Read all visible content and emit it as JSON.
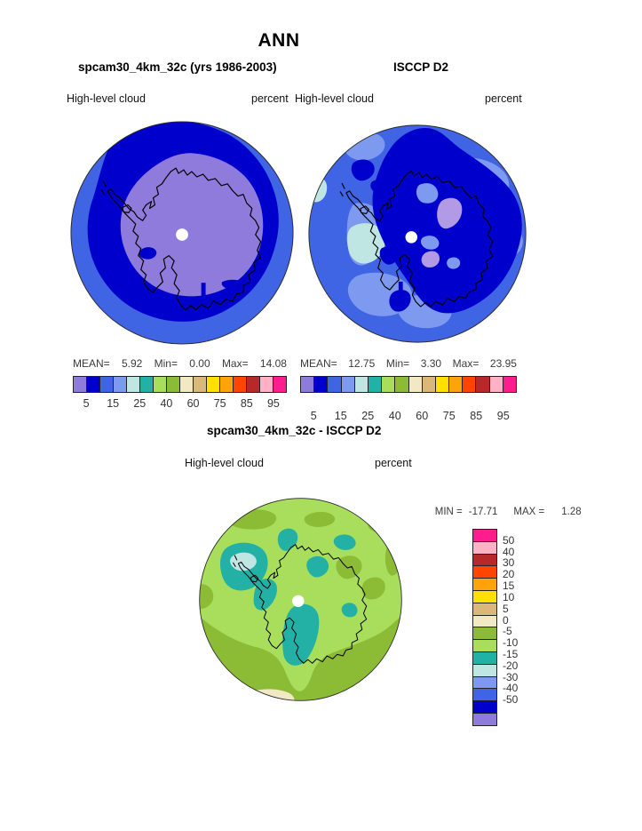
{
  "title": "ANN",
  "panels": {
    "model": {
      "title": "spcam30_4km_32c (yrs 1986-2003)",
      "variable": "High-level cloud",
      "units": "percent",
      "stats": {
        "mean_label": "MEAN=",
        "mean": "5.92",
        "min_label": "Min=",
        "min": "0.00",
        "max_label": "Max=",
        "max": "14.08"
      }
    },
    "obs": {
      "title": "ISCCP D2",
      "variable": "High-level cloud",
      "units": "percent",
      "stats": {
        "mean_label": "MEAN=",
        "mean": "12.75",
        "min_label": "Min=",
        "min": "3.30",
        "max_label": "Max=",
        "max": "23.95"
      }
    },
    "diff": {
      "title": "spcam30_4km_32c - ISCCP D2",
      "variable": "High-level cloud",
      "units": "percent",
      "stats": {
        "min_label": "MIN =",
        "min": "-17.71",
        "max_label": "MAX =",
        "max": "1.28"
      }
    }
  },
  "colorbar_horizontal": {
    "ticks": [
      "5",
      "15",
      "25",
      "40",
      "60",
      "75",
      "85",
      "95"
    ]
  },
  "colorbar_vertical": {
    "ticks": [
      "50",
      "40",
      "30",
      "20",
      "15",
      "10",
      "5",
      "0",
      "-5",
      "-10",
      "-15",
      "-20",
      "-30",
      "-40",
      "-50"
    ]
  },
  "palette_low_to_high": [
    "#8F7BDB",
    "#0000CC",
    "#3F64E4",
    "#7E9AF0",
    "#BFE6E2",
    "#23B1A6",
    "#A8DE5C",
    "#8CBB35",
    "#F0E9C4",
    "#D9B87A",
    "#FFE000",
    "#FFA30A",
    "#FF4500",
    "#B5292A",
    "#FFB1C6",
    "#FF1C8E"
  ],
  "map_colors": {
    "lavender_patch": "#B29BE4",
    "coastline": "#000000",
    "map_outline": "#2B2B2B",
    "pole_dot": "#FFFFFF"
  },
  "chart_data": [
    {
      "type": "heatmap",
      "subtype": "polar-stereographic-contour-map",
      "region": "Antarctica (South Pole view)",
      "title": "spcam30_4km_32c (yrs 1986-2003)",
      "variable": "High-level cloud",
      "units": "percent",
      "mean": 5.92,
      "min": 0.0,
      "max": 14.08,
      "level_ticks": [
        5,
        15,
        25,
        40,
        60,
        75,
        85,
        95
      ],
      "legend_position": "bottom",
      "notes": "Mostly 0-5% (purple) over the continent, 5-10% (dark blue) ring, 10-15% (royal blue) outer ring"
    },
    {
      "type": "heatmap",
      "subtype": "polar-stereographic-contour-map",
      "region": "Antarctica (South Pole view)",
      "title": "ISCCP D2",
      "variable": "High-level cloud",
      "units": "percent",
      "mean": 12.75,
      "min": 3.3,
      "max": 23.95,
      "level_ticks": [
        5,
        15,
        25,
        40,
        60,
        75,
        85,
        95
      ],
      "legend_position": "bottom",
      "notes": "Mostly 10-15% blue with 5-10% dark blue over East Antarctica, lighter and cyan patches near the Antarctic Peninsula, small purple 0-5% patches"
    },
    {
      "type": "heatmap",
      "subtype": "polar-stereographic-contour-map",
      "region": "Antarctica (South Pole view)",
      "title": "spcam30_4km_32c - ISCCP D2",
      "variable": "High-level cloud",
      "units": "percent",
      "min": -17.71,
      "max": 1.28,
      "levels": [
        50,
        40,
        30,
        20,
        15,
        10,
        5,
        0,
        -5,
        -10,
        -15,
        -20,
        -30,
        -40,
        -50
      ],
      "legend_position": "right",
      "notes": "Mostly -10 to -5 (light green) with 0 to -5 (olive) rim patches, -15 to -10 (teal) blobs, small -20 to -15 (pale cyan) and 0 to 5 (cream) patches"
    }
  ]
}
